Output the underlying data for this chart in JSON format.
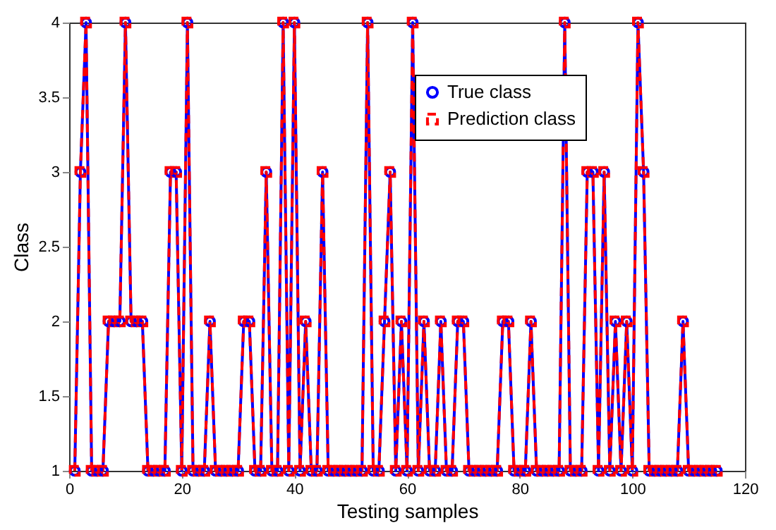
{
  "chart_data": {
    "type": "line",
    "xlabel": "Testing samples",
    "ylabel": "Class",
    "x": [
      1,
      2,
      3,
      4,
      5,
      6,
      7,
      8,
      9,
      10,
      11,
      12,
      13,
      14,
      15,
      16,
      17,
      18,
      19,
      20,
      21,
      22,
      23,
      24,
      25,
      26,
      27,
      28,
      29,
      30,
      31,
      32,
      33,
      34,
      35,
      36,
      37,
      38,
      39,
      40,
      41,
      42,
      43,
      44,
      45,
      46,
      47,
      48,
      49,
      50,
      51,
      52,
      53,
      54,
      55,
      56,
      57,
      58,
      59,
      60,
      61,
      62,
      63,
      64,
      65,
      66,
      67,
      68,
      69,
      70,
      71,
      72,
      73,
      74,
      75,
      76,
      77,
      78,
      79,
      80,
      81,
      82,
      83,
      84,
      85,
      86,
      87,
      88,
      89,
      90,
      91,
      92,
      93,
      94,
      95,
      96,
      97,
      98,
      99,
      100,
      101,
      102,
      103,
      104,
      105,
      106,
      107,
      108,
      109,
      110,
      111,
      112,
      113,
      114,
      115
    ],
    "series": [
      {
        "name": "True class",
        "color": "#0000ff",
        "marker": "circle",
        "line_style": "solid",
        "values": [
          1,
          3,
          4,
          1,
          1,
          1,
          2,
          2,
          2,
          4,
          2,
          2,
          2,
          1,
          1,
          1,
          1,
          3,
          3,
          1,
          4,
          1,
          1,
          1,
          2,
          1,
          1,
          1,
          1,
          1,
          2,
          2,
          1,
          1,
          3,
          1,
          1,
          4,
          1,
          4,
          1,
          2,
          1,
          1,
          3,
          1,
          1,
          1,
          1,
          1,
          1,
          1,
          4,
          1,
          1,
          2,
          3,
          1,
          2,
          1,
          4,
          1,
          2,
          1,
          1,
          2,
          1,
          1,
          2,
          2,
          1,
          1,
          1,
          1,
          1,
          1,
          2,
          2,
          1,
          1,
          1,
          2,
          1,
          1,
          1,
          1,
          1,
          4,
          1,
          1,
          1,
          3,
          3,
          1,
          3,
          1,
          2,
          1,
          2,
          1,
          4,
          3,
          1,
          1,
          1,
          1,
          1,
          1,
          2,
          1,
          1,
          1,
          1,
          1,
          1
        ]
      },
      {
        "name": "Prediction class",
        "color": "#ff0000",
        "marker": "square",
        "line_style": "dashed",
        "values": [
          1,
          3,
          4,
          1,
          1,
          1,
          2,
          2,
          2,
          4,
          2,
          2,
          2,
          1,
          1,
          1,
          1,
          3,
          3,
          1,
          4,
          1,
          1,
          1,
          2,
          1,
          1,
          1,
          1,
          1,
          2,
          2,
          1,
          1,
          3,
          1,
          1,
          4,
          1,
          4,
          1,
          2,
          1,
          1,
          3,
          1,
          1,
          1,
          1,
          1,
          1,
          1,
          4,
          1,
          1,
          2,
          3,
          1,
          2,
          1,
          4,
          1,
          2,
          1,
          1,
          2,
          1,
          1,
          2,
          2,
          1,
          1,
          1,
          1,
          1,
          1,
          2,
          2,
          1,
          1,
          1,
          2,
          1,
          1,
          1,
          1,
          1,
          4,
          1,
          1,
          1,
          3,
          3,
          1,
          3,
          1,
          2,
          1,
          2,
          1,
          4,
          3,
          1,
          1,
          1,
          1,
          1,
          1,
          2,
          1,
          1,
          1,
          1,
          1,
          1
        ]
      }
    ],
    "xlim": [
      0,
      120
    ],
    "xticks": [
      0,
      20,
      40,
      60,
      80,
      100,
      120
    ],
    "ylim": [
      1,
      4
    ],
    "yticks": [
      {
        "value": 1,
        "label": "1"
      },
      1.5,
      {
        "value": 2,
        "label": "2"
      },
      2.5,
      {
        "value": 3,
        "label": "3"
      },
      3.5,
      {
        "value": 4,
        "label": "4"
      }
    ],
    "grid": false,
    "legend": "top right"
  }
}
